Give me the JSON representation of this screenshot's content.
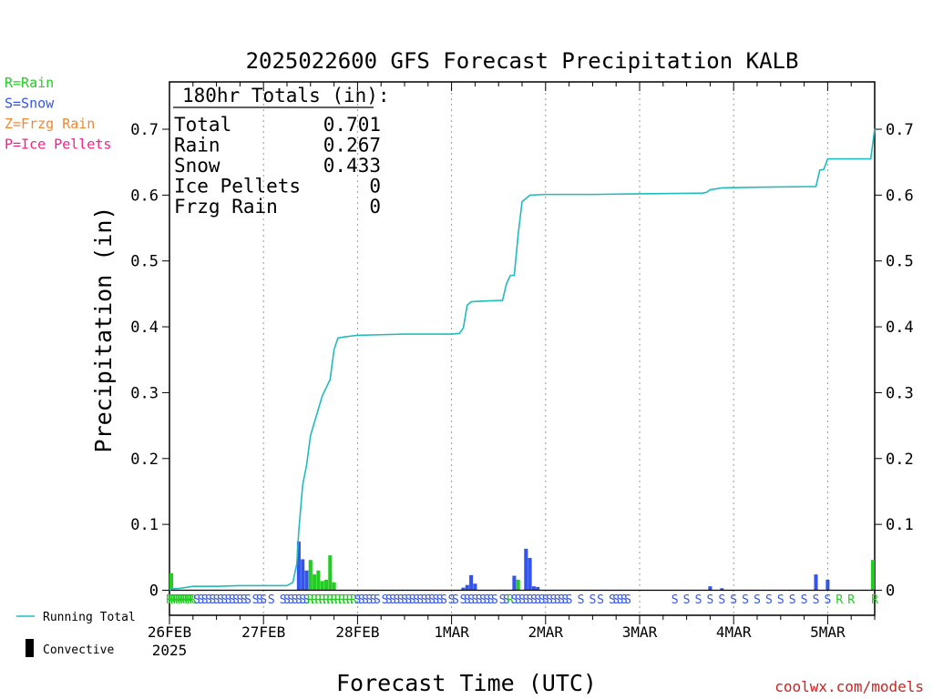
{
  "chart_data": {
    "type": "bar",
    "title": "2025022600 GFS Forecast Precipitation KALB",
    "xlabel": "Forecast Time (UTC)",
    "ylabel": "Precipitation (in)",
    "credit": "coolwx.com/models",
    "ylim": [
      0,
      0.77
    ],
    "xlim_hours": [
      0,
      180
    ],
    "y_ticks": [
      "0",
      "0.1",
      "0.2",
      "0.3",
      "0.4",
      "0.5",
      "0.6",
      "0.7"
    ],
    "x_ticks": [
      {
        "hour": 0,
        "label": "26FEB",
        "sub": "2025"
      },
      {
        "hour": 24,
        "label": "27FEB"
      },
      {
        "hour": 48,
        "label": "28FEB"
      },
      {
        "hour": 72,
        "label": "1MAR"
      },
      {
        "hour": 96,
        "label": "2MAR"
      },
      {
        "hour": 120,
        "label": "3MAR"
      },
      {
        "hour": 144,
        "label": "4MAR"
      },
      {
        "hour": 168,
        "label": "5MAR"
      }
    ],
    "type_legend": [
      {
        "text": "R=Rain",
        "color": "#22cc22"
      },
      {
        "text": "S=Snow",
        "color": "#3355ee"
      },
      {
        "text": "Z=Frzg Rain",
        "color": "#ee8833"
      },
      {
        "text": "P=Ice Pellets",
        "color": "#ee2288"
      }
    ],
    "series_legend": [
      {
        "text": "Running Total",
        "color": "#22bbbb"
      },
      {
        "text": "Convective",
        "color": "#000000"
      }
    ],
    "totals_box": {
      "header": "180hr Totals (in):",
      "rows": [
        {
          "label": "Total",
          "value": "0.701"
        },
        {
          "label": "Rain",
          "value": "0.267"
        },
        {
          "label": "Snow",
          "value": "0.433"
        },
        {
          "label": "Ice Pellets",
          "value": "0"
        },
        {
          "label": "Frzg Rain",
          "value": "0"
        }
      ]
    },
    "bars": [
      {
        "hour": 0,
        "value": 0.026,
        "type": "rain"
      },
      {
        "hour": 33,
        "value": 0.074,
        "type": "snow"
      },
      {
        "hour": 34,
        "value": 0.047,
        "type": "snow"
      },
      {
        "hour": 35,
        "value": 0.03,
        "type": "snow"
      },
      {
        "hour": 36,
        "value": 0.046,
        "type": "rain"
      },
      {
        "hour": 37,
        "value": 0.024,
        "type": "rain"
      },
      {
        "hour": 38,
        "value": 0.03,
        "type": "rain"
      },
      {
        "hour": 39,
        "value": 0.014,
        "type": "rain"
      },
      {
        "hour": 40,
        "value": 0.016,
        "type": "rain"
      },
      {
        "hour": 41,
        "value": 0.053,
        "type": "rain"
      },
      {
        "hour": 42,
        "value": 0.012,
        "type": "rain"
      },
      {
        "hour": 75,
        "value": 0.004,
        "type": "snow"
      },
      {
        "hour": 76,
        "value": 0.008,
        "type": "snow"
      },
      {
        "hour": 77,
        "value": 0.023,
        "type": "snow"
      },
      {
        "hour": 78,
        "value": 0.01,
        "type": "snow"
      },
      {
        "hour": 88,
        "value": 0.022,
        "type": "snow"
      },
      {
        "hour": 89,
        "value": 0.016,
        "type": "rain"
      },
      {
        "hour": 91,
        "value": 0.063,
        "type": "snow"
      },
      {
        "hour": 92,
        "value": 0.049,
        "type": "snow"
      },
      {
        "hour": 93,
        "value": 0.006,
        "type": "snow"
      },
      {
        "hour": 94,
        "value": 0.005,
        "type": "snow"
      },
      {
        "hour": 138,
        "value": 0.006,
        "type": "snow"
      },
      {
        "hour": 141,
        "value": 0.003,
        "type": "snow"
      },
      {
        "hour": 165,
        "value": 0.024,
        "type": "snow"
      },
      {
        "hour": 168,
        "value": 0.016,
        "type": "snow"
      },
      {
        "hour": 180,
        "value": 0.046,
        "type": "rain"
      }
    ],
    "running_total": [
      [
        0,
        0.0
      ],
      [
        0.5,
        0.002
      ],
      [
        3,
        0.003
      ],
      [
        6,
        0.006
      ],
      [
        12,
        0.006
      ],
      [
        18,
        0.007
      ],
      [
        30,
        0.007
      ],
      [
        31.5,
        0.012
      ],
      [
        32.5,
        0.04
      ],
      [
        33,
        0.09
      ],
      [
        34,
        0.16
      ],
      [
        35,
        0.19
      ],
      [
        36,
        0.235
      ],
      [
        37.5,
        0.265
      ],
      [
        39,
        0.295
      ],
      [
        41,
        0.32
      ],
      [
        42,
        0.365
      ],
      [
        43,
        0.383
      ],
      [
        45,
        0.385
      ],
      [
        48,
        0.387
      ],
      [
        54,
        0.388
      ],
      [
        60,
        0.389
      ],
      [
        72,
        0.389
      ],
      [
        74,
        0.39
      ],
      [
        75,
        0.398
      ],
      [
        76,
        0.433
      ],
      [
        77,
        0.438
      ],
      [
        80,
        0.439
      ],
      [
        84,
        0.44
      ],
      [
        85,
        0.44
      ],
      [
        86,
        0.465
      ],
      [
        87,
        0.478
      ],
      [
        88,
        0.478
      ],
      [
        89,
        0.54
      ],
      [
        90,
        0.59
      ],
      [
        92,
        0.6
      ],
      [
        96,
        0.601
      ],
      [
        108,
        0.601
      ],
      [
        120,
        0.602
      ],
      [
        136,
        0.603
      ],
      [
        137,
        0.604
      ],
      [
        138,
        0.608
      ],
      [
        141,
        0.611
      ],
      [
        150,
        0.612
      ],
      [
        165,
        0.613
      ],
      [
        166,
        0.638
      ],
      [
        167,
        0.639
      ],
      [
        168,
        0.655
      ],
      [
        174,
        0.655
      ],
      [
        179,
        0.655
      ],
      [
        180,
        0.701
      ]
    ],
    "type_marks": [
      {
        "from": 0,
        "to": 6,
        "step": 0.6,
        "letter": "R",
        "type": "rain"
      },
      {
        "from": 7,
        "to": 19,
        "step": 1,
        "letter": "S",
        "type": "snow"
      },
      {
        "from": 20,
        "to": 20,
        "step": 1,
        "letter": "S",
        "type": "snow"
      },
      {
        "from": 22,
        "to": 24,
        "step": 1,
        "letter": "S",
        "type": "snow"
      },
      {
        "from": 26,
        "to": 26,
        "step": 1,
        "letter": "S",
        "type": "snow"
      },
      {
        "from": 29,
        "to": 35,
        "step": 1,
        "letter": "S",
        "type": "snow"
      },
      {
        "from": 36,
        "to": 47,
        "step": 1,
        "letter": "R",
        "type": "rain"
      },
      {
        "from": 48,
        "to": 53,
        "step": 1,
        "letter": "S",
        "type": "snow"
      },
      {
        "from": 55,
        "to": 70,
        "step": 1,
        "letter": "S",
        "type": "snow"
      },
      {
        "from": 72,
        "to": 73,
        "step": 1,
        "letter": "S",
        "type": "snow"
      },
      {
        "from": 75,
        "to": 83,
        "step": 1,
        "letter": "S",
        "type": "snow"
      },
      {
        "from": 85,
        "to": 86,
        "step": 1,
        "letter": "S",
        "type": "snow"
      },
      {
        "from": 87,
        "to": 87,
        "step": 1,
        "letter": "R",
        "type": "rain"
      },
      {
        "from": 88,
        "to": 102,
        "step": 1,
        "letter": "S",
        "type": "snow"
      },
      {
        "from": 105,
        "to": 105,
        "step": 1,
        "letter": "S",
        "type": "snow"
      },
      {
        "from": 108,
        "to": 108,
        "step": 1,
        "letter": "S",
        "type": "snow"
      },
      {
        "from": 110,
        "to": 110,
        "step": 1,
        "letter": "S",
        "type": "snow"
      },
      {
        "from": 113,
        "to": 117,
        "step": 1,
        "letter": "S",
        "type": "snow"
      },
      {
        "from": 129,
        "to": 168,
        "step": 3,
        "letter": "S",
        "type": "snow"
      },
      {
        "from": 171,
        "to": 174,
        "step": 3,
        "letter": "R",
        "type": "rain"
      },
      {
        "from": 180,
        "to": 180,
        "step": 3,
        "letter": "R",
        "type": "rain"
      }
    ]
  }
}
